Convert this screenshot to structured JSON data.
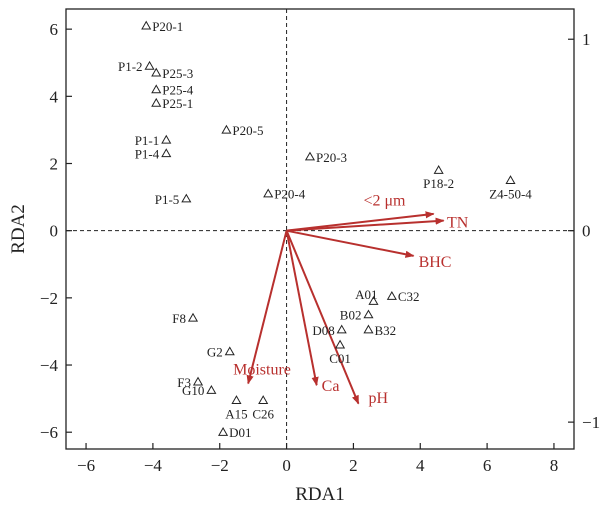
{
  "chart_data": {
    "type": "scatter",
    "title": "",
    "xlabel": "RDA1",
    "ylabel": "RDA2",
    "xlim": [
      -6.6,
      8.6
    ],
    "ylim": [
      -6.5,
      6.6
    ],
    "x_ticks": [
      -6,
      -4,
      -2,
      0,
      2,
      4,
      6,
      8
    ],
    "y_ticks": [
      -6,
      -4,
      -2,
      0,
      2,
      4,
      6
    ],
    "right_axis": {
      "ticks": [
        -1,
        0,
        1
      ],
      "scale": 5.7
    },
    "reference_lines": {
      "x": 0,
      "y": 0
    },
    "marker_color": "#222222",
    "arrow_color": "#b8302e",
    "points": [
      {
        "label": "P20-1",
        "x": -4.2,
        "y": 6.1
      },
      {
        "label": "P1-2",
        "x": -4.1,
        "y": 4.9
      },
      {
        "label": "P25-3",
        "x": -3.9,
        "y": 4.7
      },
      {
        "label": "P25-4",
        "x": -3.9,
        "y": 4.2
      },
      {
        "label": "P25-1",
        "x": -3.9,
        "y": 3.8
      },
      {
        "label": "P1-1",
        "x": -3.6,
        "y": 2.7
      },
      {
        "label": "P1-4",
        "x": -3.6,
        "y": 2.3
      },
      {
        "label": "P20-5",
        "x": -1.8,
        "y": 3.0
      },
      {
        "label": "P20-3",
        "x": 0.7,
        "y": 2.2
      },
      {
        "label": "P1-5",
        "x": -3.0,
        "y": 0.95
      },
      {
        "label": "P20-4",
        "x": -0.55,
        "y": 1.1
      },
      {
        "label": "P18-2",
        "x": 4.55,
        "y": 1.8
      },
      {
        "label": "Z4-50-4",
        "x": 6.7,
        "y": 1.5
      },
      {
        "label": "A01",
        "x": 2.6,
        "y": -2.1
      },
      {
        "label": "C32",
        "x": 3.15,
        "y": -1.95
      },
      {
        "label": "B02",
        "x": 2.45,
        "y": -2.5
      },
      {
        "label": "D08",
        "x": 1.65,
        "y": -2.95
      },
      {
        "label": "B32",
        "x": 2.45,
        "y": -2.95
      },
      {
        "label": "C01",
        "x": 1.6,
        "y": -3.4
      },
      {
        "label": "F8",
        "x": -2.8,
        "y": -2.6
      },
      {
        "label": "G2",
        "x": -1.7,
        "y": -3.6
      },
      {
        "label": "F3",
        "x": -2.65,
        "y": -4.5
      },
      {
        "label": "G10",
        "x": -2.25,
        "y": -4.75
      },
      {
        "label": "A15",
        "x": -1.5,
        "y": -5.05
      },
      {
        "label": "C26",
        "x": -0.7,
        "y": -5.05
      },
      {
        "label": "D01",
        "x": -1.9,
        "y": -6.0
      }
    ],
    "arrows": [
      {
        "label": "<2 μm",
        "x": 4.4,
        "y": 0.5
      },
      {
        "label": "TN",
        "x": 4.7,
        "y": 0.3
      },
      {
        "label": "BHC",
        "x": 3.8,
        "y": -0.75
      },
      {
        "label": "Moisture",
        "x": -1.15,
        "y": -4.55
      },
      {
        "label": "Ca",
        "x": 0.9,
        "y": -4.6
      },
      {
        "label": "pH",
        "x": 2.15,
        "y": -5.15
      }
    ]
  }
}
